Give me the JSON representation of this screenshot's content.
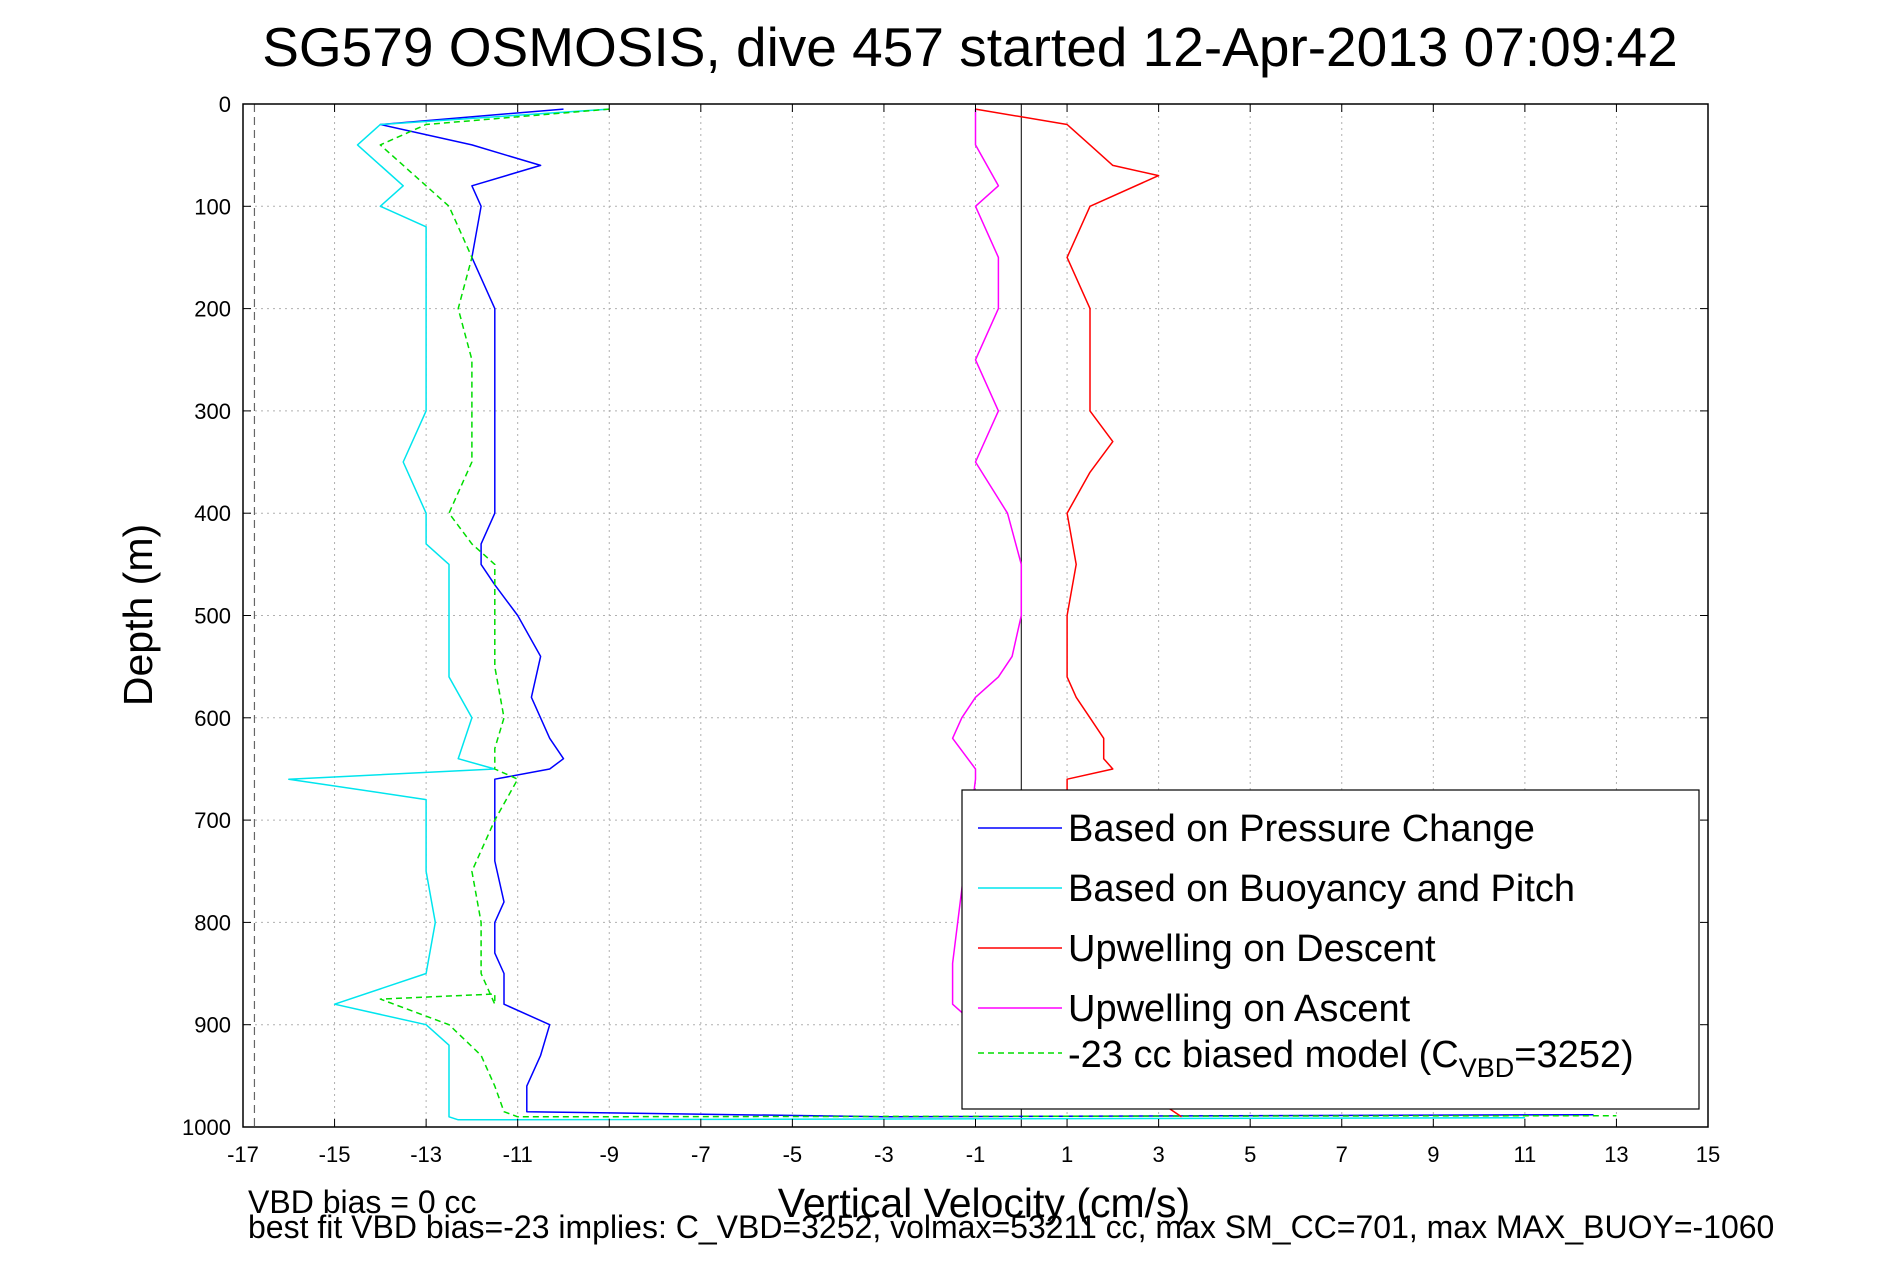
{
  "chart_data": {
    "type": "line",
    "title": "SG579 OSMOSIS, dive 457 started 12-Apr-2013 07:09:42",
    "xlabel": "Vertical Velocity (cm/s)",
    "ylabel": "Depth (m)",
    "xlim": [
      -17,
      15
    ],
    "ylim": [
      0,
      1000
    ],
    "y_reversed": true,
    "grid": true,
    "x_ticks": [
      -17,
      -15,
      -13,
      -11,
      -9,
      -7,
      -5,
      -3,
      -1,
      1,
      3,
      5,
      7,
      9,
      11,
      13,
      15
    ],
    "y_ticks": [
      0,
      100,
      200,
      300,
      400,
      500,
      600,
      700,
      800,
      900,
      1000
    ],
    "legend_position": "bottom-right",
    "series": [
      {
        "name": "Based on Pressure Change",
        "color": "#0000ff",
        "x": [
          -10,
          -14,
          -12,
          -10.5,
          -12,
          -11.8,
          -12,
          -11.5,
          -11.5,
          -11.5,
          -11.5,
          -11.5,
          -11.5,
          -11.8,
          -11.8,
          -11.5,
          -11,
          -10.5,
          -10.7,
          -10.3,
          -10,
          -10.3,
          -11.5,
          -11.5,
          -11.5,
          -11.3,
          -11.5,
          -11.5,
          -11.3,
          -11.3,
          -10.3,
          -10.5,
          -10.8,
          -10.8,
          -3,
          12.5
        ],
        "y": [
          5,
          20,
          40,
          60,
          80,
          100,
          150,
          200,
          250,
          290,
          320,
          350,
          400,
          430,
          450,
          470,
          500,
          540,
          580,
          620,
          640,
          650,
          660,
          700,
          740,
          780,
          800,
          830,
          850,
          880,
          900,
          930,
          960,
          985,
          990,
          988
        ]
      },
      {
        "name": "Based on Buoyancy and Pitch",
        "color": "#00e5ee",
        "x": [
          -9,
          -14,
          -14.5,
          -13.5,
          -14,
          -13,
          -13,
          -13,
          -13,
          -13,
          -13.5,
          -13,
          -13,
          -12.5,
          -12.5,
          -12.5,
          -12.5,
          -12,
          -12.3,
          -11.5,
          -16,
          -13,
          -13,
          -13,
          -12.8,
          -13,
          -15,
          -13,
          -12.5,
          -12.5,
          -12.5,
          -12.3,
          11
        ],
        "y": [
          5,
          20,
          40,
          80,
          100,
          120,
          150,
          200,
          250,
          300,
          350,
          400,
          430,
          450,
          500,
          530,
          560,
          600,
          640,
          650,
          660,
          680,
          700,
          750,
          800,
          850,
          880,
          900,
          920,
          960,
          990,
          993,
          991
        ]
      },
      {
        "name": "Upwelling on Descent",
        "color": "#ff0000",
        "x": [
          -1,
          1,
          1.5,
          2,
          3,
          1.5,
          1,
          1.5,
          1.5,
          1.5,
          1.5,
          2,
          1.5,
          1,
          1.2,
          1,
          1,
          1,
          1.2,
          1.5,
          1.8,
          1.8,
          2,
          1,
          1,
          0.5,
          3.5
        ],
        "y": [
          5,
          20,
          40,
          60,
          70,
          100,
          150,
          200,
          250,
          280,
          300,
          330,
          360,
          400,
          450,
          500,
          540,
          560,
          580,
          600,
          620,
          640,
          650,
          660,
          700,
          900,
          990
        ]
      },
      {
        "name": "Upwelling on Ascent",
        "color": "#ff00ff",
        "x": [
          -1,
          -1,
          -0.5,
          -1,
          -0.5,
          -0.5,
          -1,
          -0.5,
          -1,
          -0.3,
          0,
          0,
          -0.2,
          -0.5,
          -1,
          -1.3,
          -1.5,
          -1,
          -1,
          -1.5,
          -1.5,
          -1
        ],
        "y": [
          5,
          40,
          80,
          100,
          150,
          200,
          250,
          300,
          350,
          400,
          450,
          500,
          540,
          560,
          580,
          600,
          620,
          650,
          660,
          840,
          880,
          900
        ]
      },
      {
        "name": "-23 cc biased model (C_VBD=3252)",
        "color": "#00dd00",
        "dashed": true,
        "x": [
          -9,
          -13,
          -14,
          -13,
          -12.5,
          -12,
          -12.3,
          -12,
          -12,
          -12,
          -12,
          -12.5,
          -12,
          -11.5,
          -11.5,
          -11.5,
          -11.3,
          -11.5,
          -11.5,
          -11,
          -11.5,
          -12,
          -11.8,
          -11.8,
          -11.5,
          -11.5,
          -14,
          -12.5,
          -11.8,
          -11.5,
          -11.3,
          -11,
          13
        ],
        "y": [
          5,
          20,
          40,
          80,
          100,
          150,
          200,
          250,
          300,
          320,
          350,
          400,
          430,
          450,
          500,
          550,
          600,
          630,
          650,
          660,
          700,
          750,
          800,
          850,
          880,
          870,
          875,
          900,
          930,
          960,
          985,
          990,
          989
        ]
      }
    ],
    "reference_line": {
      "x": 0,
      "color": "#000000"
    },
    "dashed_reference": {
      "x": -16.75,
      "color": "#666666"
    }
  },
  "footer": {
    "line1": "VBD bias = 0 cc",
    "line2": "best fit VBD bias=-23 implies: C_VBD=3252, volmax=53211 cc, max SM_CC=701, max MAX_BUOY=-1060"
  },
  "legend": {
    "entries": [
      "Based on Pressure Change",
      "Based on Buoyancy and Pitch",
      "Upwelling on Descent",
      "Upwelling on Ascent"
    ],
    "last_prefix": "-23 cc biased model (C",
    "last_sub": "VBD",
    "last_suffix": "=3252)"
  }
}
